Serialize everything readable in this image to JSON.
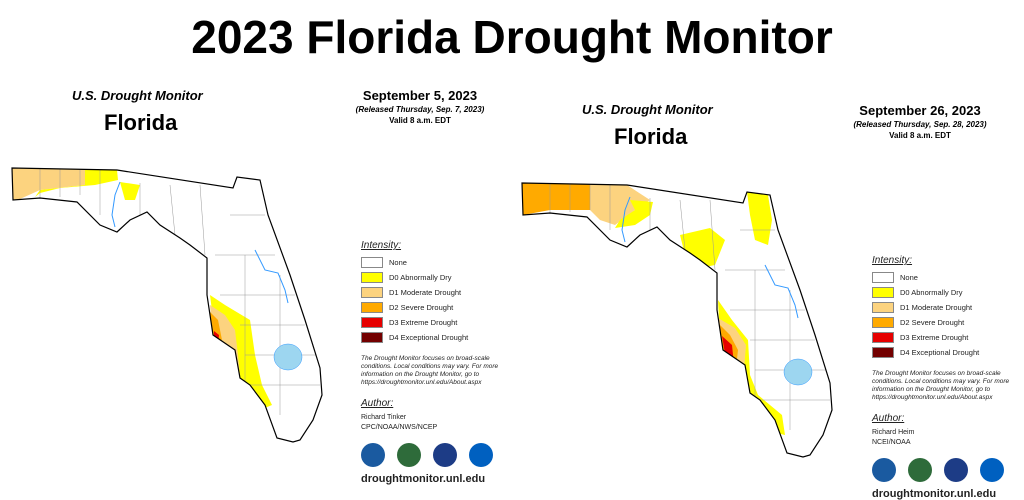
{
  "title": "2023 Florida Drought Monitor",
  "legend_colors": {
    "none": "#ffffff",
    "d0": "#ffff00",
    "d1": "#fcd37f",
    "d2": "#ffaa00",
    "d3": "#e60000",
    "d4": "#730000",
    "water": "#9dd6f0",
    "river": "#3399ff"
  },
  "panels": [
    {
      "header": "U.S. Drought Monitor",
      "state": "Florida",
      "date": "September 5, 2023",
      "released": "(Released Thursday, Sep. 7, 2023)",
      "valid": "Valid 8 a.m. EDT",
      "legend": {
        "heading": "Intensity:",
        "items": [
          "None",
          "D0 Abnormally Dry",
          "D1 Moderate Drought",
          "D2 Severe Drought",
          "D3 Extreme Drought",
          "D4 Exceptional Drought"
        ]
      },
      "note": "The Drought Monitor focuses on broad-scale conditions. Local conditions may vary. For more information on the Drought Monitor, go to https://droughtmonitor.unl.edu/About.aspx",
      "author_heading": "Author:",
      "author_name": "Richard Tinker",
      "author_org": "CPC/NOAA/NWS/NCEP",
      "logos": [
        "USDA",
        "NDMC",
        "DOC",
        "NOAA"
      ],
      "url": "droughtmonitor.unl.edu"
    },
    {
      "header": "U.S. Drought Monitor",
      "state": "Florida",
      "date": "September 26, 2023",
      "released": "(Released Thursday, Sep. 28, 2023)",
      "valid": "Valid 8 a.m. EDT",
      "legend": {
        "heading": "Intensity:",
        "items": [
          "None",
          "D0 Abnormally Dry",
          "D1 Moderate Drought",
          "D2 Severe Drought",
          "D3 Extreme Drought",
          "D4 Exceptional Drought"
        ]
      },
      "note": "The Drought Monitor focuses on broad-scale conditions. Local conditions may vary. For more information on the Drought Monitor, go to https://droughtmonitor.unl.edu/About.aspx",
      "author_heading": "Author:",
      "author_name": "Richard Heim",
      "author_org": "NCEI/NOAA",
      "logos": [
        "USDA",
        "NDMC",
        "DOC",
        "NOAA"
      ],
      "url": "droughtmonitor.unl.edu"
    }
  ]
}
